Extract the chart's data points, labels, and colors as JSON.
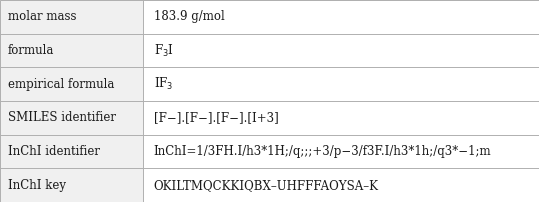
{
  "rows": [
    {
      "label": "molar mass",
      "value": "183.9 g/mol"
    },
    {
      "label": "formula",
      "value": "F$_3$I"
    },
    {
      "label": "empirical formula",
      "value": "IF$_3$"
    },
    {
      "label": "SMILES identifier",
      "value": "[F−].[F−].[F−].[I+3]"
    },
    {
      "label": "InChI identifier",
      "value": "InChI=1/3FH.I/h3*1H;/q;;;+3/p−3/f3F.I/h3*1h;/q3*−1;m"
    },
    {
      "label": "InChI key",
      "value": "OKILTMQCKKIQBX–UHFFFAOYSA–K"
    }
  ],
  "col_split": 0.265,
  "bg_color": "#f0f0f0",
  "right_bg": "#ffffff",
  "border_color": "#b0b0b0",
  "text_color": "#1a1a1a",
  "font_size": 8.5
}
